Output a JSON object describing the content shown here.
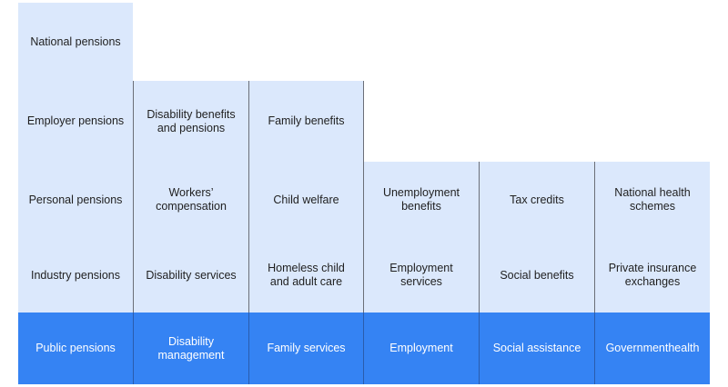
{
  "columns": [
    {
      "header": "Public pensions",
      "items": [
        "Industry pensions",
        "Personal pensions",
        "Employer pensions",
        "National pensions"
      ]
    },
    {
      "header": "Disability management",
      "items": [
        "Disability services",
        "Workers’ compensation",
        "Disability benefits and pensions"
      ]
    },
    {
      "header": "Family services",
      "items": [
        "Homeless child and adult care",
        "Child welfare",
        "Family benefits"
      ]
    },
    {
      "header": "Employment",
      "items": [
        "Employment services",
        "Unemployment benefits"
      ]
    },
    {
      "header": "Social assistance",
      "items": [
        "Social benefits",
        "Tax credits"
      ]
    },
    {
      "header": "Governmenthealth",
      "items": [
        "Private insurance exchanges",
        "National health schemes"
      ]
    }
  ],
  "colors": {
    "header_bg": "#3583f3",
    "header_text": "#ffffff",
    "item_bg": "#dbe8fc",
    "item_text": "#1f1f1f",
    "divider": "#6b6f78"
  }
}
